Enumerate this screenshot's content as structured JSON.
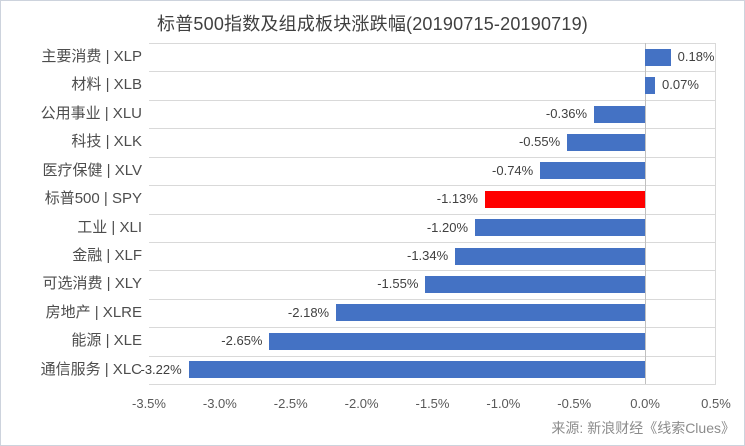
{
  "chart_data": {
    "type": "bar",
    "orientation": "horizontal",
    "title": "标普500指数及组成板块涨跌幅(20190715-20190719)",
    "categories": [
      "主要消费 | XLP",
      "材料 | XLB",
      "公用事业 | XLU",
      "科技 | XLK",
      "医疗保健 | XLV",
      "标普500 | SPY",
      "工业 | XLI",
      "金融 | XLF",
      "可选消费 | XLY",
      "房地产 | XLRE",
      "能源 | XLE",
      "通信服务 | XLC"
    ],
    "values": [
      0.18,
      0.07,
      -0.36,
      -0.55,
      -0.74,
      -1.13,
      -1.2,
      -1.34,
      -1.55,
      -2.18,
      -2.65,
      -3.22
    ],
    "value_labels": [
      "0.18%",
      "0.07%",
      "-0.36%",
      "-0.55%",
      "-0.74%",
      "-1.13%",
      "-1.20%",
      "-1.34%",
      "-1.55%",
      "-2.18%",
      "-2.65%",
      "-3.22%"
    ],
    "highlight_index": 5,
    "highlight_category": "标普500 | SPY",
    "xlabel": "",
    "ylabel": "",
    "xlim": [
      -3.5,
      0.5
    ],
    "x_tick_step": 0.5,
    "x_ticks": [
      "-3.5%",
      "-3.0%",
      "-2.5%",
      "-2.0%",
      "-1.5%",
      "-1.0%",
      "-0.5%",
      "0.0%",
      "0.5%"
    ],
    "legend": "none",
    "grid": "category-row-separators"
  },
  "source_note": "来源: 新浪财经《线索Clues》",
  "colors": {
    "bar": "#4472C4",
    "highlight": "#FF0000",
    "gridline": "#D9D9D9",
    "zero_axis": "#C0C0C0",
    "title_text": "#404040",
    "category_text": "#4D4D4D",
    "value_text": "#404040",
    "tick_text": "#595959",
    "source_text": "#8C8C8C",
    "frame_border": "#CDD3DD",
    "background": "#FFFFFF"
  }
}
